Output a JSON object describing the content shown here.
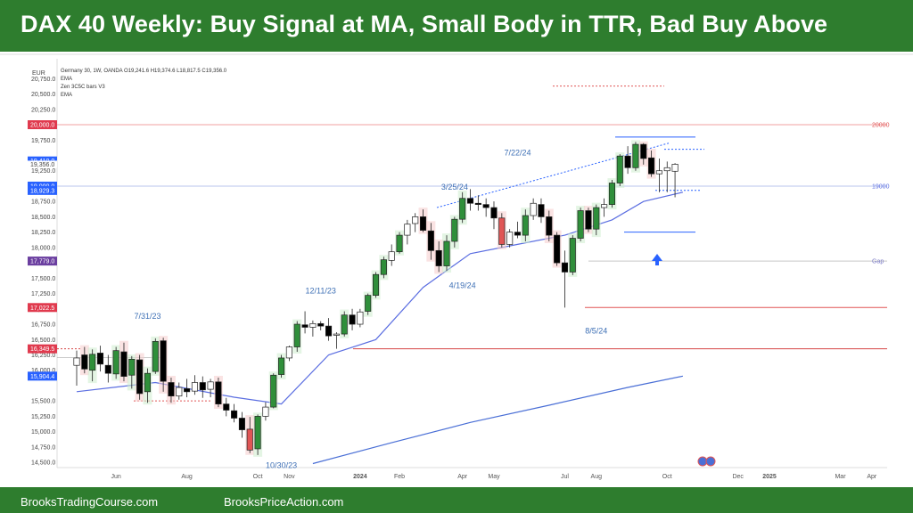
{
  "title": "DAX 40 Weekly: Buy Signal at MA, Small Body in TTR, Bad Buy Above",
  "footer": {
    "left": "BrooksTradingCourse.com",
    "right": "BrooksPriceAction.com"
  },
  "colors": {
    "banner": "#2e7d2e",
    "bull": "#2f8f3a",
    "bear": "#000000",
    "bear_red": "#e05555",
    "ema20": "#5b6ee1",
    "ema_long": "#4a6fd6",
    "annotation": "#3d6fb5"
  },
  "chart_data": {
    "type": "candlestick",
    "legend": [
      "Germany 30, 1W, OANDA  O19,241.6  H19,374.6  L18,817.5  C19,356.0",
      "EMA",
      "Zen 3C5C bars V3",
      "EMA"
    ],
    "currency": "EUR",
    "y_ticks": [
      "20,750.0",
      "20,500.0",
      "20,250.0",
      "19,750.0",
      "19,250.0",
      "18,750.0",
      "18,500.0",
      "18,250.0",
      "18,000.0",
      "17,500.0",
      "17,250.0",
      "17,000.0",
      "16,750.0",
      "16,500.0",
      "16,250.0",
      "16,000.0",
      "15,500.0",
      "15,250.0",
      "15,000.0",
      "14,750.0",
      "14,500.0"
    ],
    "ylim": [
      14400,
      20900
    ],
    "x_ticks": [
      {
        "label": "Jun",
        "bar": 5
      },
      {
        "label": "Aug",
        "bar": 14
      },
      {
        "label": "Oct",
        "bar": 23
      },
      {
        "label": "Nov",
        "bar": 27
      },
      {
        "label": "2024",
        "bar": 36
      },
      {
        "label": "Feb",
        "bar": 41
      },
      {
        "label": "Apr",
        "bar": 49
      },
      {
        "label": "May",
        "bar": 53
      },
      {
        "label": "Jul",
        "bar": 62
      },
      {
        "label": "Aug",
        "bar": 66
      },
      {
        "label": "Oct",
        "bar": 75
      },
      {
        "label": "Dec",
        "bar": 84
      },
      {
        "label": "2025",
        "bar": 88
      },
      {
        "label": "Mar",
        "bar": 97
      },
      {
        "label": "Apr",
        "bar": 101
      }
    ],
    "price_badges": [
      {
        "label": "20,000.0",
        "value": 20000,
        "color": "#e03a4e"
      },
      {
        "label": "19,410.0",
        "value": 19410,
        "color": "#2962ff"
      },
      {
        "label": "19,356.0",
        "value": 19356,
        "color": null
      },
      {
        "label": "19,000.0",
        "value": 19000,
        "color": "#2962ff"
      },
      {
        "label": "18,929.3",
        "value": 18929,
        "color": "#2962ff"
      },
      {
        "label": "17,779.0",
        "value": 17779,
        "color": "#6b3fa0"
      },
      {
        "label": "17,022.5",
        "value": 17022,
        "color": "#e03a4e"
      },
      {
        "label": "16,349.5",
        "value": 16349,
        "color": "#e03a4e"
      },
      {
        "label": "15,904.4",
        "value": 15904,
        "color": "#2962ff"
      }
    ],
    "right_labels": [
      {
        "label": "20000",
        "value": 20000,
        "color": "#e05555"
      },
      {
        "label": "19000",
        "value": 19000,
        "color": "#5b6ee1"
      },
      {
        "label": "Gap",
        "value": 17779,
        "color": "#7f7fc8"
      }
    ],
    "annotations": [
      {
        "text": "7/31/23",
        "bar": 9,
        "value": 16840
      },
      {
        "text": "12/11/23",
        "bar": 31,
        "value": 17250
      },
      {
        "text": "10/30/23",
        "bar": 26,
        "value": 14410
      },
      {
        "text": "3/25/24",
        "bar": 48,
        "value": 18940
      },
      {
        "text": "4/19/24",
        "bar": 49,
        "value": 17340
      },
      {
        "text": "7/22/24",
        "bar": 56,
        "value": 19500
      },
      {
        "text": "8/5/24",
        "bar": 66,
        "value": 16600
      }
    ],
    "candles": [
      {
        "o": 16080,
        "h": 16320,
        "l": 15750,
        "c": 16200
      },
      {
        "o": 16250,
        "h": 16380,
        "l": 15950,
        "c": 16020
      },
      {
        "o": 16000,
        "h": 16340,
        "l": 15820,
        "c": 16260
      },
      {
        "o": 16280,
        "h": 16400,
        "l": 15980,
        "c": 16100
      },
      {
        "o": 16080,
        "h": 16250,
        "l": 15800,
        "c": 15950
      },
      {
        "o": 15940,
        "h": 16380,
        "l": 15860,
        "c": 16320
      },
      {
        "o": 16300,
        "h": 16450,
        "l": 15820,
        "c": 15900
      },
      {
        "o": 15920,
        "h": 16230,
        "l": 15700,
        "c": 16180
      },
      {
        "o": 16170,
        "h": 16250,
        "l": 15520,
        "c": 15620
      },
      {
        "o": 15650,
        "h": 16030,
        "l": 15470,
        "c": 15950
      },
      {
        "o": 15980,
        "h": 16520,
        "l": 15940,
        "c": 16470
      },
      {
        "o": 16480,
        "h": 16530,
        "l": 15650,
        "c": 15820
      },
      {
        "o": 15800,
        "h": 15880,
        "l": 15470,
        "c": 15580
      },
      {
        "o": 15580,
        "h": 15800,
        "l": 15520,
        "c": 15720
      },
      {
        "o": 15700,
        "h": 15860,
        "l": 15560,
        "c": 15650
      },
      {
        "o": 15660,
        "h": 15920,
        "l": 15600,
        "c": 15800
      },
      {
        "o": 15800,
        "h": 15900,
        "l": 15550,
        "c": 15680
      },
      {
        "o": 15690,
        "h": 15860,
        "l": 15560,
        "c": 15810
      },
      {
        "o": 15810,
        "h": 15880,
        "l": 15400,
        "c": 15450
      },
      {
        "o": 15450,
        "h": 15550,
        "l": 15250,
        "c": 15350
      },
      {
        "o": 15340,
        "h": 15450,
        "l": 15150,
        "c": 15220
      },
      {
        "o": 15220,
        "h": 15320,
        "l": 14900,
        "c": 15030
      },
      {
        "o": 15040,
        "h": 15240,
        "l": 14650,
        "c": 14700
      },
      {
        "o": 14720,
        "h": 15280,
        "l": 14620,
        "c": 15250
      },
      {
        "o": 15250,
        "h": 15480,
        "l": 15180,
        "c": 15400
      },
      {
        "o": 15400,
        "h": 15950,
        "l": 15380,
        "c": 15920
      },
      {
        "o": 15930,
        "h": 16250,
        "l": 15880,
        "c": 16200
      },
      {
        "o": 16200,
        "h": 16400,
        "l": 16150,
        "c": 16380
      },
      {
        "o": 16380,
        "h": 16800,
        "l": 16300,
        "c": 16750
      },
      {
        "o": 16740,
        "h": 16960,
        "l": 16600,
        "c": 16700
      },
      {
        "o": 16700,
        "h": 16810,
        "l": 16550,
        "c": 16760
      },
      {
        "o": 16760,
        "h": 16800,
        "l": 16650,
        "c": 16720
      },
      {
        "o": 16720,
        "h": 16850,
        "l": 16480,
        "c": 16560
      },
      {
        "o": 16570,
        "h": 16620,
        "l": 16350,
        "c": 16590
      },
      {
        "o": 16590,
        "h": 16960,
        "l": 16550,
        "c": 16900
      },
      {
        "o": 16900,
        "h": 17000,
        "l": 16650,
        "c": 16750
      },
      {
        "o": 16750,
        "h": 17000,
        "l": 16700,
        "c": 16950
      },
      {
        "o": 16960,
        "h": 17250,
        "l": 16900,
        "c": 17220
      },
      {
        "o": 17220,
        "h": 17600,
        "l": 17180,
        "c": 17560
      },
      {
        "o": 17560,
        "h": 17850,
        "l": 17500,
        "c": 17800
      },
      {
        "o": 17790,
        "h": 18050,
        "l": 17700,
        "c": 17930
      },
      {
        "o": 17930,
        "h": 18250,
        "l": 17900,
        "c": 18200
      },
      {
        "o": 18200,
        "h": 18450,
        "l": 18050,
        "c": 18380
      },
      {
        "o": 18390,
        "h": 18560,
        "l": 18250,
        "c": 18500
      },
      {
        "o": 18500,
        "h": 18620,
        "l": 18250,
        "c": 18280
      },
      {
        "o": 18270,
        "h": 18400,
        "l": 17800,
        "c": 17950
      },
      {
        "o": 17950,
        "h": 18100,
        "l": 17600,
        "c": 17700
      },
      {
        "o": 17700,
        "h": 18200,
        "l": 17620,
        "c": 18100
      },
      {
        "o": 18100,
        "h": 18500,
        "l": 18000,
        "c": 18460
      },
      {
        "o": 18460,
        "h": 18900,
        "l": 18400,
        "c": 18800
      },
      {
        "o": 18800,
        "h": 18950,
        "l": 18600,
        "c": 18720
      },
      {
        "o": 18720,
        "h": 18850,
        "l": 18600,
        "c": 18700
      },
      {
        "o": 18700,
        "h": 18800,
        "l": 18500,
        "c": 18650
      },
      {
        "o": 18650,
        "h": 18750,
        "l": 18300,
        "c": 18480
      },
      {
        "o": 18480,
        "h": 18560,
        "l": 18000,
        "c": 18050
      },
      {
        "o": 18050,
        "h": 18300,
        "l": 18000,
        "c": 18250
      },
      {
        "o": 18250,
        "h": 18420,
        "l": 18150,
        "c": 18200
      },
      {
        "o": 18200,
        "h": 18620,
        "l": 18100,
        "c": 18520
      },
      {
        "o": 18520,
        "h": 18800,
        "l": 18450,
        "c": 18720
      },
      {
        "o": 18700,
        "h": 18800,
        "l": 18400,
        "c": 18500
      },
      {
        "o": 18500,
        "h": 18600,
        "l": 18100,
        "c": 18200
      },
      {
        "o": 18200,
        "h": 18250,
        "l": 17700,
        "c": 17750
      },
      {
        "o": 17750,
        "h": 17950,
        "l": 17020,
        "c": 17600
      },
      {
        "o": 17600,
        "h": 18200,
        "l": 17550,
        "c": 18150
      },
      {
        "o": 18150,
        "h": 18650,
        "l": 18100,
        "c": 18600
      },
      {
        "o": 18600,
        "h": 18650,
        "l": 18250,
        "c": 18300
      },
      {
        "o": 18300,
        "h": 18700,
        "l": 18200,
        "c": 18650
      },
      {
        "o": 18650,
        "h": 18800,
        "l": 18500,
        "c": 18700
      },
      {
        "o": 18700,
        "h": 19100,
        "l": 18650,
        "c": 19050
      },
      {
        "o": 19050,
        "h": 19520,
        "l": 19000,
        "c": 19490
      },
      {
        "o": 19490,
        "h": 19650,
        "l": 19200,
        "c": 19300
      },
      {
        "o": 19300,
        "h": 19720,
        "l": 19250,
        "c": 19680
      },
      {
        "o": 19680,
        "h": 19700,
        "l": 19350,
        "c": 19450
      },
      {
        "o": 19460,
        "h": 19580,
        "l": 19150,
        "c": 19200
      },
      {
        "o": 19200,
        "h": 19450,
        "l": 18900,
        "c": 19250
      },
      {
        "o": 19250,
        "h": 19400,
        "l": 18900,
        "c": 19300
      },
      {
        "o": 19241.6,
        "h": 19374.6,
        "l": 18817.5,
        "c": 19356
      }
    ],
    "ema20": [
      [
        0,
        15650
      ],
      [
        10,
        15800
      ],
      [
        20,
        15560
      ],
      [
        26,
        15450
      ],
      [
        32,
        16250
      ],
      [
        38,
        16500
      ],
      [
        44,
        17350
      ],
      [
        50,
        17900
      ],
      [
        56,
        18050
      ],
      [
        62,
        18200
      ],
      [
        68,
        18450
      ],
      [
        72,
        18750
      ],
      [
        77,
        18900
      ]
    ],
    "ema_long": [
      [
        30,
        14480
      ],
      [
        40,
        14820
      ],
      [
        50,
        15150
      ],
      [
        60,
        15430
      ],
      [
        70,
        15720
      ],
      [
        77,
        15904
      ]
    ]
  }
}
